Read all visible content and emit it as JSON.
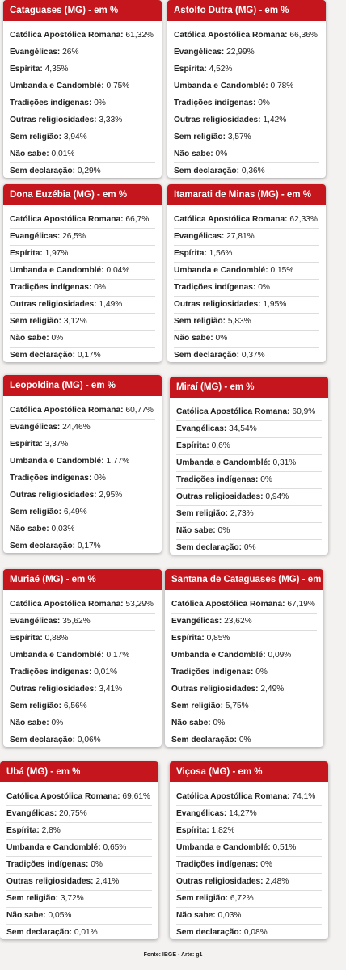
{
  "cards": [
    {
      "title": "Cataguases (MG) - em %",
      "rows": [
        [
          "Católica Apostólica Romana:",
          "61,32%"
        ],
        [
          "Evangélicas:",
          "26%"
        ],
        [
          "Espírita:",
          "4,35%"
        ],
        [
          "Umbanda e Candomblé:",
          "0,75%"
        ],
        [
          "Tradições indígenas:",
          "0%"
        ],
        [
          "Outras religiosidades:",
          "3,33%"
        ],
        [
          "Sem religião:",
          "3,94%"
        ],
        [
          "Não sabe:",
          "0,01%"
        ],
        [
          "Sem declaração:",
          "0,29%"
        ]
      ]
    },
    {
      "title": "Astolfo Dutra (MG) - em %",
      "rows": [
        [
          "Católica Apostólica Romana:",
          "66,36%"
        ],
        [
          "Evangélicas:",
          "22,99%"
        ],
        [
          "Espírita:",
          "4,52%"
        ],
        [
          "Umbanda e Candomblé:",
          "0,78%"
        ],
        [
          "Tradições indígenas:",
          "0%"
        ],
        [
          "Outras religiosidades:",
          "1,42%"
        ],
        [
          "Sem religião:",
          "3,57%"
        ],
        [
          "Não sabe:",
          "0%"
        ],
        [
          "Sem declaração:",
          "0,36%"
        ]
      ]
    },
    {
      "title": "Dona Euzébia (MG) - em %",
      "rows": [
        [
          "Católica Apostólica Romana:",
          "66,7%"
        ],
        [
          "Evangélicas:",
          "26,5%"
        ],
        [
          "Espírita:",
          "1,97%"
        ],
        [
          "Umbanda e Candomblé:",
          "0,04%"
        ],
        [
          "Tradições indígenas:",
          "0%"
        ],
        [
          "Outras religiosidades:",
          "1,49%"
        ],
        [
          "Sem religião:",
          "3,12%"
        ],
        [
          "Não sabe:",
          "0%"
        ],
        [
          "Sem declaração:",
          "0,17%"
        ]
      ]
    },
    {
      "title": "Itamarati de Minas (MG) - em %",
      "rows": [
        [
          "Católica Apostólica Romana:",
          "62,33%"
        ],
        [
          "Evangélicas:",
          "27,81%"
        ],
        [
          "Espírita:",
          "1,56%"
        ],
        [
          "Umbanda e Candomblé:",
          "0,15%"
        ],
        [
          "Tradições indígenas:",
          "0%"
        ],
        [
          "Outras religiosidades:",
          "1,95%"
        ],
        [
          "Sem religião:",
          "5,83%"
        ],
        [
          "Não sabe:",
          "0%"
        ],
        [
          "Sem declaração:",
          "0,37%"
        ]
      ]
    },
    {
      "title": "Leopoldina (MG) - em %",
      "rows": [
        [
          "Católica Apostólica Romana:",
          "60,77%"
        ],
        [
          "Evangélicas:",
          "24,46%"
        ],
        [
          "Espírita:",
          "3,37%"
        ],
        [
          "Umbanda e Candomblé:",
          "1,77%"
        ],
        [
          "Tradições indígenas:",
          "0%"
        ],
        [
          "Outras religiosidades:",
          "2,95%"
        ],
        [
          "Sem religião:",
          "6,49%"
        ],
        [
          "Não sabe:",
          "0,03%"
        ],
        [
          "Sem declaração:",
          "0,17%"
        ]
      ]
    },
    {
      "title": "Miraí (MG) - em %",
      "rows": [
        [
          "Católica Apostólica Romana:",
          "60,9%"
        ],
        [
          "Evangélicas:",
          "34,54%"
        ],
        [
          "Espírita:",
          "0,6%"
        ],
        [
          "Umbanda e Candomblé:",
          "0,31%"
        ],
        [
          "Tradições indígenas:",
          "0%"
        ],
        [
          "Outras religiosidades:",
          "0,94%"
        ],
        [
          "Sem religião:",
          "2,73%"
        ],
        [
          "Não sabe:",
          "0%"
        ],
        [
          "Sem declaração:",
          "0%"
        ]
      ]
    },
    {
      "title": "Muriaé (MG) - em %",
      "rows": [
        [
          "Católica Apostólica Romana:",
          "53,29%"
        ],
        [
          "Evangélicas:",
          "35,62%"
        ],
        [
          "Espírita:",
          "0,88%"
        ],
        [
          "Umbanda e Candomblé:",
          "0,17%"
        ],
        [
          "Tradições indígenas:",
          "0,01%"
        ],
        [
          "Outras religiosidades:",
          "3,41%"
        ],
        [
          "Sem religião:",
          "6,56%"
        ],
        [
          "Não sabe:",
          "0%"
        ],
        [
          "Sem declaração:",
          "0,06%"
        ]
      ]
    },
    {
      "title": "Santana de Cataguases (MG) - em %",
      "rows": [
        [
          "Católica Apostólica Romana:",
          "67,19%"
        ],
        [
          "Evangélicas:",
          "23,62%"
        ],
        [
          "Espírita:",
          "0,85%"
        ],
        [
          "Umbanda e Candomblé:",
          "0,09%"
        ],
        [
          "Tradições indígenas:",
          "0%"
        ],
        [
          "Outras religiosidades:",
          "2,49%"
        ],
        [
          "Sem religião:",
          "5,75%"
        ],
        [
          "Não sabe:",
          "0%"
        ],
        [
          "Sem declaração:",
          "0%"
        ]
      ]
    },
    {
      "title": "Ubá (MG) - em %",
      "rows": [
        [
          "Católica Apostólica Romana:",
          "69,61%"
        ],
        [
          "Evangélicas:",
          "20,75%"
        ],
        [
          "Espírita:",
          "2,8%"
        ],
        [
          "Umbanda e Candomblé:",
          "0,65%"
        ],
        [
          "Tradições indígenas:",
          "0%"
        ],
        [
          "Outras religiosidades:",
          "2,41%"
        ],
        [
          "Sem religião:",
          "3,72%"
        ],
        [
          "Não sabe:",
          "0,05%"
        ],
        [
          "Sem declaração:",
          "0,01%"
        ]
      ]
    },
    {
      "title": "Viçosa (MG) - em %",
      "rows": [
        [
          "Católica Apostólica Romana:",
          "74,1%"
        ],
        [
          "Evangélicas:",
          "14,27%"
        ],
        [
          "Espírita:",
          "1,82%"
        ],
        [
          "Umbanda e Candomblé:",
          "0,51%"
        ],
        [
          "Tradições indígenas:",
          "0%"
        ],
        [
          "Outras religiosidades:",
          "2,48%"
        ],
        [
          "Sem religião:",
          "6,72%"
        ],
        [
          "Não sabe:",
          "0,03%"
        ],
        [
          "Sem declaração:",
          "0,08%"
        ]
      ]
    }
  ],
  "footer": "Fonte: IBGE - Arte: g1"
}
